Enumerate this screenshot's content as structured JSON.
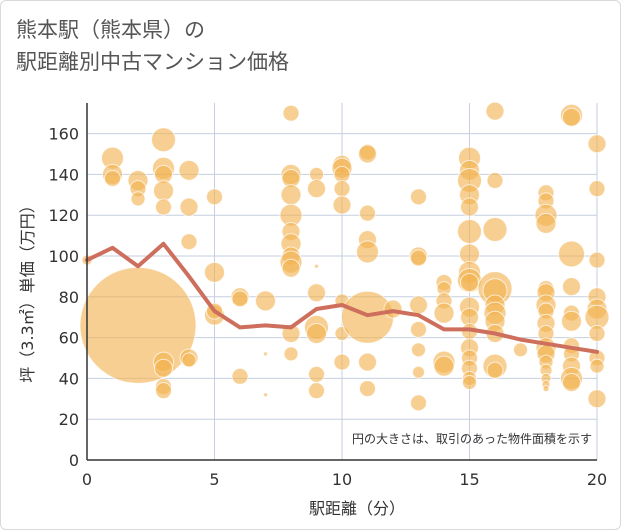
{
  "chart_data": {
    "type": "scatter",
    "title_lines": [
      "熊本駅（熊本県）の",
      "駅距離別中古マンション価格"
    ],
    "xlabel": "駅距離（分）",
    "ylabel": "坪（3.3㎡）単価（万円）",
    "annotation": "円の大きさは、取引のあった物件面積を示す",
    "xlim": [
      0,
      20
    ],
    "ylim": [
      0,
      175
    ],
    "x_ticks": [
      0,
      5,
      10,
      15,
      20
    ],
    "y_ticks": [
      0,
      20,
      40,
      60,
      80,
      100,
      120,
      140,
      160
    ],
    "grid": true,
    "colors": {
      "bubble": "#f2b14f",
      "line": "#cd6f5c",
      "grid": "#c5cfdf",
      "axis": "#333333"
    },
    "bubbles": [
      {
        "x": 0,
        "y": 98,
        "s": 5
      },
      {
        "x": 1,
        "y": 148,
        "s": 11
      },
      {
        "x": 1,
        "y": 140,
        "s": 10
      },
      {
        "x": 1,
        "y": 138,
        "s": 8
      },
      {
        "x": 2,
        "y": 66,
        "s": 58
      },
      {
        "x": 2,
        "y": 137,
        "s": 10
      },
      {
        "x": 2,
        "y": 133,
        "s": 8
      },
      {
        "x": 2,
        "y": 128,
        "s": 7
      },
      {
        "x": 3,
        "y": 157,
        "s": 12
      },
      {
        "x": 3,
        "y": 143,
        "s": 11
      },
      {
        "x": 3,
        "y": 140,
        "s": 9
      },
      {
        "x": 3,
        "y": 132,
        "s": 10
      },
      {
        "x": 3,
        "y": 124,
        "s": 8
      },
      {
        "x": 3,
        "y": 48,
        "s": 10
      },
      {
        "x": 3,
        "y": 45,
        "s": 9
      },
      {
        "x": 3,
        "y": 36,
        "s": 8
      },
      {
        "x": 3,
        "y": 34,
        "s": 8
      },
      {
        "x": 4,
        "y": 142,
        "s": 10
      },
      {
        "x": 4,
        "y": 124,
        "s": 9
      },
      {
        "x": 4,
        "y": 107,
        "s": 8
      },
      {
        "x": 4,
        "y": 50,
        "s": 9
      },
      {
        "x": 4,
        "y": 49,
        "s": 7
      },
      {
        "x": 5,
        "y": 129,
        "s": 8
      },
      {
        "x": 5,
        "y": 92,
        "s": 10
      },
      {
        "x": 5,
        "y": 71,
        "s": 10
      },
      {
        "x": 5,
        "y": 73,
        "s": 8
      },
      {
        "x": 6,
        "y": 80,
        "s": 9
      },
      {
        "x": 6,
        "y": 79,
        "s": 8
      },
      {
        "x": 6,
        "y": 41,
        "s": 8
      },
      {
        "x": 7,
        "y": 78,
        "s": 10
      },
      {
        "x": 7,
        "y": 52,
        "s": 2
      },
      {
        "x": 7,
        "y": 32,
        "s": 2
      },
      {
        "x": 8,
        "y": 170,
        "s": 8
      },
      {
        "x": 8,
        "y": 140,
        "s": 10
      },
      {
        "x": 8,
        "y": 138,
        "s": 9
      },
      {
        "x": 8,
        "y": 130,
        "s": 10
      },
      {
        "x": 8,
        "y": 120,
        "s": 11
      },
      {
        "x": 8,
        "y": 112,
        "s": 9
      },
      {
        "x": 8,
        "y": 106,
        "s": 10
      },
      {
        "x": 8,
        "y": 100,
        "s": 9
      },
      {
        "x": 8,
        "y": 97,
        "s": 11
      },
      {
        "x": 8,
        "y": 94,
        "s": 9
      },
      {
        "x": 8,
        "y": 62,
        "s": 9
      },
      {
        "x": 8,
        "y": 52,
        "s": 7
      },
      {
        "x": 9,
        "y": 140,
        "s": 7
      },
      {
        "x": 9,
        "y": 133,
        "s": 9
      },
      {
        "x": 9,
        "y": 95,
        "s": 2
      },
      {
        "x": 9,
        "y": 82,
        "s": 9
      },
      {
        "x": 9,
        "y": 65,
        "s": 12
      },
      {
        "x": 9,
        "y": 62,
        "s": 10
      },
      {
        "x": 9,
        "y": 42,
        "s": 8
      },
      {
        "x": 9,
        "y": 34,
        "s": 8
      },
      {
        "x": 10,
        "y": 145,
        "s": 9
      },
      {
        "x": 10,
        "y": 143,
        "s": 10
      },
      {
        "x": 10,
        "y": 140,
        "s": 8
      },
      {
        "x": 10,
        "y": 133,
        "s": 8
      },
      {
        "x": 10,
        "y": 125,
        "s": 9
      },
      {
        "x": 10,
        "y": 78,
        "s": 7
      },
      {
        "x": 10,
        "y": 62,
        "s": 7
      },
      {
        "x": 10,
        "y": 48,
        "s": 8
      },
      {
        "x": 11,
        "y": 151,
        "s": 8
      },
      {
        "x": 11,
        "y": 150,
        "s": 9
      },
      {
        "x": 11,
        "y": 121,
        "s": 8
      },
      {
        "x": 11,
        "y": 108,
        "s": 9
      },
      {
        "x": 11,
        "y": 102,
        "s": 11
      },
      {
        "x": 11,
        "y": 70,
        "s": 26
      },
      {
        "x": 11,
        "y": 48,
        "s": 9
      },
      {
        "x": 11,
        "y": 35,
        "s": 8
      },
      {
        "x": 12,
        "y": 74,
        "s": 9
      },
      {
        "x": 13,
        "y": 129,
        "s": 8
      },
      {
        "x": 13,
        "y": 100,
        "s": 9
      },
      {
        "x": 13,
        "y": 99,
        "s": 8
      },
      {
        "x": 13,
        "y": 76,
        "s": 9
      },
      {
        "x": 13,
        "y": 64,
        "s": 8
      },
      {
        "x": 13,
        "y": 54,
        "s": 7
      },
      {
        "x": 13,
        "y": 43,
        "s": 6
      },
      {
        "x": 13,
        "y": 28,
        "s": 8
      },
      {
        "x": 14,
        "y": 87,
        "s": 8
      },
      {
        "x": 14,
        "y": 84,
        "s": 7
      },
      {
        "x": 14,
        "y": 78,
        "s": 8
      },
      {
        "x": 14,
        "y": 72,
        "s": 10
      },
      {
        "x": 14,
        "y": 48,
        "s": 11
      },
      {
        "x": 14,
        "y": 46,
        "s": 10
      },
      {
        "x": 15,
        "y": 148,
        "s": 11
      },
      {
        "x": 15,
        "y": 142,
        "s": 10
      },
      {
        "x": 15,
        "y": 137,
        "s": 12
      },
      {
        "x": 15,
        "y": 130,
        "s": 10
      },
      {
        "x": 15,
        "y": 124,
        "s": 9
      },
      {
        "x": 15,
        "y": 112,
        "s": 12
      },
      {
        "x": 15,
        "y": 101,
        "s": 10
      },
      {
        "x": 15,
        "y": 92,
        "s": 11
      },
      {
        "x": 15,
        "y": 88,
        "s": 12
      },
      {
        "x": 15,
        "y": 87,
        "s": 9
      },
      {
        "x": 15,
        "y": 75,
        "s": 10
      },
      {
        "x": 15,
        "y": 70,
        "s": 9
      },
      {
        "x": 15,
        "y": 63,
        "s": 8
      },
      {
        "x": 15,
        "y": 55,
        "s": 9
      },
      {
        "x": 15,
        "y": 50,
        "s": 8
      },
      {
        "x": 15,
        "y": 45,
        "s": 8
      },
      {
        "x": 15,
        "y": 40,
        "s": 7
      },
      {
        "x": 15,
        "y": 38,
        "s": 7
      },
      {
        "x": 16,
        "y": 171,
        "s": 9
      },
      {
        "x": 16,
        "y": 137,
        "s": 8
      },
      {
        "x": 16,
        "y": 113,
        "s": 12
      },
      {
        "x": 16,
        "y": 84,
        "s": 17
      },
      {
        "x": 16,
        "y": 83,
        "s": 12
      },
      {
        "x": 16,
        "y": 76,
        "s": 10
      },
      {
        "x": 16,
        "y": 72,
        "s": 11
      },
      {
        "x": 16,
        "y": 68,
        "s": 10
      },
      {
        "x": 16,
        "y": 62,
        "s": 9
      },
      {
        "x": 16,
        "y": 46,
        "s": 12
      },
      {
        "x": 16,
        "y": 44,
        "s": 8
      },
      {
        "x": 17,
        "y": 54,
        "s": 7
      },
      {
        "x": 18,
        "y": 131,
        "s": 8
      },
      {
        "x": 18,
        "y": 127,
        "s": 8
      },
      {
        "x": 18,
        "y": 120,
        "s": 11
      },
      {
        "x": 18,
        "y": 116,
        "s": 10
      },
      {
        "x": 18,
        "y": 84,
        "s": 8
      },
      {
        "x": 18,
        "y": 82,
        "s": 9
      },
      {
        "x": 18,
        "y": 76,
        "s": 10
      },
      {
        "x": 18,
        "y": 73,
        "s": 8
      },
      {
        "x": 18,
        "y": 67,
        "s": 9
      },
      {
        "x": 18,
        "y": 62,
        "s": 8
      },
      {
        "x": 18,
        "y": 55,
        "s": 10
      },
      {
        "x": 18,
        "y": 52,
        "s": 9
      },
      {
        "x": 18,
        "y": 48,
        "s": 7
      },
      {
        "x": 18,
        "y": 44,
        "s": 6
      },
      {
        "x": 18,
        "y": 40,
        "s": 5
      },
      {
        "x": 18,
        "y": 37,
        "s": 4
      },
      {
        "x": 18,
        "y": 35,
        "s": 3
      },
      {
        "x": 19,
        "y": 169,
        "s": 11
      },
      {
        "x": 19,
        "y": 168,
        "s": 9
      },
      {
        "x": 19,
        "y": 101,
        "s": 13
      },
      {
        "x": 19,
        "y": 85,
        "s": 9
      },
      {
        "x": 19,
        "y": 72,
        "s": 8
      },
      {
        "x": 19,
        "y": 68,
        "s": 10
      },
      {
        "x": 19,
        "y": 56,
        "s": 8
      },
      {
        "x": 19,
        "y": 52,
        "s": 8
      },
      {
        "x": 19,
        "y": 46,
        "s": 9
      },
      {
        "x": 19,
        "y": 40,
        "s": 11
      },
      {
        "x": 19,
        "y": 38,
        "s": 9
      },
      {
        "x": 20,
        "y": 155,
        "s": 9
      },
      {
        "x": 20,
        "y": 133,
        "s": 8
      },
      {
        "x": 20,
        "y": 98,
        "s": 8
      },
      {
        "x": 20,
        "y": 80,
        "s": 9
      },
      {
        "x": 20,
        "y": 74,
        "s": 10
      },
      {
        "x": 20,
        "y": 70,
        "s": 12
      },
      {
        "x": 20,
        "y": 62,
        "s": 8
      },
      {
        "x": 20,
        "y": 50,
        "s": 8
      },
      {
        "x": 20,
        "y": 46,
        "s": 7
      },
      {
        "x": 20,
        "y": 30,
        "s": 9
      }
    ],
    "series": [
      {
        "x": [
          0,
          1,
          2,
          3,
          4,
          5,
          6,
          7,
          8,
          9,
          10,
          11,
          12,
          13,
          14,
          15,
          16,
          17,
          18,
          19,
          20
        ],
        "values": [
          98,
          104,
          95,
          106,
          90,
          73,
          65,
          66,
          65,
          74,
          76,
          71,
          73,
          71,
          64,
          64,
          62,
          59,
          57,
          55,
          53
        ]
      }
    ]
  }
}
